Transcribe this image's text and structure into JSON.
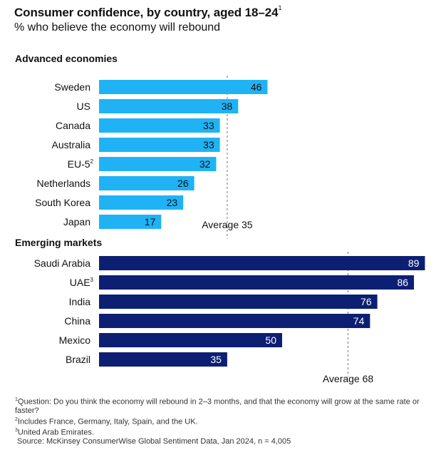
{
  "title": "Consumer confidence, by country, aged 18–24",
  "title_note": "1",
  "subtitle": "% who believe the economy will rebound",
  "colors": {
    "advanced": "#1fb3f5",
    "emerging": "#0d1f73",
    "avg_line": "#777777"
  },
  "chart_data": [
    {
      "type": "bar",
      "title": "Advanced economies",
      "categories": [
        "Sweden",
        "US",
        "Canada",
        "Australia",
        "EU-5",
        "Netherlands",
        "South Korea",
        "Japan"
      ],
      "category_notes": [
        "",
        "",
        "",
        "",
        "2",
        "",
        "",
        ""
      ],
      "values": [
        46,
        38,
        33,
        33,
        32,
        26,
        23,
        17
      ],
      "average": 35,
      "average_label": "Average 35",
      "xlim": [
        0,
        100
      ]
    },
    {
      "type": "bar",
      "title": "Emerging markets",
      "categories": [
        "Saudi Arabia",
        "UAE",
        "India",
        "China",
        "Mexico",
        "Brazil"
      ],
      "category_notes": [
        "",
        "3",
        "",
        "",
        "",
        ""
      ],
      "values": [
        89,
        86,
        76,
        74,
        50,
        35
      ],
      "average": 68,
      "average_label": "Average 68",
      "xlim": [
        0,
        100
      ]
    }
  ],
  "footnotes": [
    {
      "mark": "1",
      "text": "Question: Do you think the economy will rebound in 2–3 months, and that the economy will grow at the same rate or faster?"
    },
    {
      "mark": "2",
      "text": "Includes France, Germany, Italy, Spain, and the UK."
    },
    {
      "mark": "3",
      "text": "United Arab Emirates."
    },
    {
      "mark": "",
      "text": "Source: McKinsey ConsumerWise Global Sentiment Data, Jan 2024, n = 4,005"
    }
  ]
}
